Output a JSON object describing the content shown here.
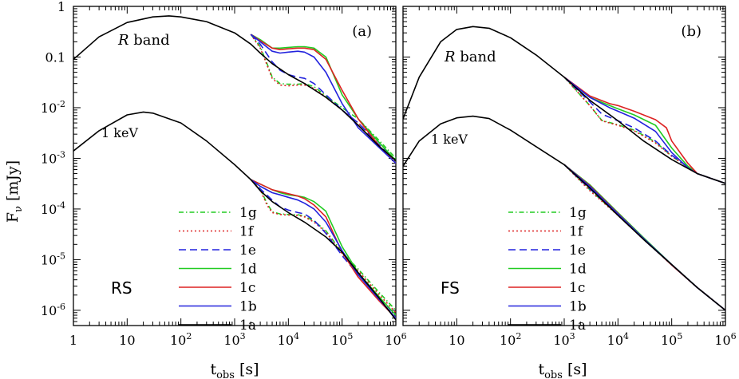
{
  "figure": {
    "ylabel_main": "F",
    "ylabel_sub": "ν",
    "ylabel_unit": "[mJy]",
    "xlabel_main": "t",
    "xlabel_sub": "obs",
    "xlabel_unit": "[s]",
    "x_ticks": [
      {
        "value": 1,
        "base": "1",
        "exp": ""
      },
      {
        "value": 10,
        "base": "10",
        "exp": ""
      },
      {
        "value": 100,
        "base": "10",
        "exp": "2"
      },
      {
        "value": 1000,
        "base": "10",
        "exp": "3"
      },
      {
        "value": 10000,
        "base": "10",
        "exp": "4"
      },
      {
        "value": 100000,
        "base": "10",
        "exp": "5"
      },
      {
        "value": 1000000,
        "base": "10",
        "exp": "6"
      }
    ],
    "y_ticks": [
      {
        "value": 1,
        "base": "1",
        "exp": ""
      },
      {
        "value": 0.1,
        "base": "0.1",
        "exp": ""
      },
      {
        "value": 0.01,
        "base": "10",
        "exp": "-2"
      },
      {
        "value": 0.001,
        "base": "10",
        "exp": "-3"
      },
      {
        "value": 0.0001,
        "base": "10",
        "exp": "-4"
      },
      {
        "value": 1e-05,
        "base": "10",
        "exp": "-5"
      },
      {
        "value": 1e-06,
        "base": "10",
        "exp": "-6"
      }
    ],
    "legend": [
      {
        "name": "1g",
        "color": "#22cc22",
        "dash": "dashdot"
      },
      {
        "name": "1f",
        "color": "#dd2222",
        "dash": "dotted"
      },
      {
        "name": "1e",
        "color": "#2222dd",
        "dash": "dashed"
      },
      {
        "name": "1d",
        "color": "#22cc22",
        "dash": "solid"
      },
      {
        "name": "1c",
        "color": "#dd2222",
        "dash": "solid"
      },
      {
        "name": "1b",
        "color": "#2222dd",
        "dash": "solid"
      },
      {
        "name": "1a",
        "color": "#000000",
        "dash": "solid"
      }
    ]
  },
  "chart_data": [
    {
      "type": "line",
      "panel_label": "(a)",
      "corner_label": "RS",
      "band_label_italic": "R",
      "band_label": "band",
      "xray_label": "1 keV",
      "xscale": "log",
      "yscale": "log",
      "xlim": [
        1,
        1000000
      ],
      "ylim": [
        5e-07,
        1
      ],
      "series": [
        {
          "name": "1a",
          "band": "R",
          "x": [
            1,
            3,
            10,
            30,
            60,
            100,
            300,
            1000,
            2000,
            3000,
            5000,
            10000,
            20000,
            50000,
            100000,
            200000,
            500000,
            1000000
          ],
          "y": [
            0.09,
            0.25,
            0.48,
            0.62,
            0.65,
            0.62,
            0.5,
            0.3,
            0.18,
            0.12,
            0.074,
            0.045,
            0.03,
            0.016,
            0.009,
            0.0045,
            0.0017,
            0.0009
          ]
        },
        {
          "name": "1b",
          "band": "R",
          "x": [
            2000,
            3000,
            5000,
            7000,
            10000,
            15000,
            20000,
            30000,
            50000,
            100000,
            200000,
            500000,
            1000000
          ],
          "y": [
            0.28,
            0.2,
            0.13,
            0.12,
            0.125,
            0.13,
            0.125,
            0.1,
            0.05,
            0.012,
            0.004,
            0.0016,
            0.0008
          ]
        },
        {
          "name": "1c",
          "band": "R",
          "x": [
            2000,
            3000,
            5000,
            7000,
            10000,
            15000,
            20000,
            30000,
            50000,
            100000,
            200000,
            500000,
            1000000
          ],
          "y": [
            0.28,
            0.21,
            0.15,
            0.14,
            0.145,
            0.15,
            0.15,
            0.14,
            0.09,
            0.022,
            0.006,
            0.0017,
            0.0008
          ]
        },
        {
          "name": "1d",
          "band": "R",
          "x": [
            2000,
            3000,
            5000,
            7000,
            10000,
            15000,
            20000,
            30000,
            50000,
            100000,
            200000,
            500000,
            1000000
          ],
          "y": [
            0.28,
            0.22,
            0.15,
            0.15,
            0.155,
            0.16,
            0.16,
            0.15,
            0.1,
            0.018,
            0.006,
            0.002,
            0.0009
          ]
        },
        {
          "name": "1e",
          "band": "R",
          "x": [
            2000,
            3000,
            5000,
            7000,
            10000,
            15000,
            20000,
            30000,
            50000,
            100000,
            200000,
            500000,
            1000000
          ],
          "y": [
            0.28,
            0.18,
            0.08,
            0.055,
            0.045,
            0.04,
            0.038,
            0.03,
            0.018,
            0.009,
            0.005,
            0.0018,
            0.0009
          ]
        },
        {
          "name": "1f",
          "band": "R",
          "x": [
            2000,
            3000,
            4000,
            5000,
            7000,
            10000,
            15000,
            20000,
            30000,
            50000,
            100000,
            200000,
            500000,
            1000000
          ],
          "y": [
            0.28,
            0.15,
            0.07,
            0.038,
            0.028,
            0.027,
            0.028,
            0.028,
            0.024,
            0.016,
            0.009,
            0.005,
            0.002,
            0.0009
          ]
        },
        {
          "name": "1g",
          "band": "R",
          "x": [
            2000,
            3000,
            4000,
            5000,
            7000,
            10000,
            15000,
            20000,
            30000,
            50000,
            100000,
            200000,
            500000,
            1000000
          ],
          "y": [
            0.28,
            0.16,
            0.075,
            0.04,
            0.03,
            0.029,
            0.029,
            0.03,
            0.026,
            0.017,
            0.01,
            0.006,
            0.0022,
            0.001
          ]
        },
        {
          "name": "1a",
          "band": "X",
          "x": [
            1,
            3,
            10,
            20,
            30,
            100,
            300,
            1000,
            2000,
            3000,
            5000,
            10000,
            20000,
            50000,
            100000,
            200000,
            500000,
            1000000
          ],
          "y": [
            0.0014,
            0.0035,
            0.0072,
            0.0082,
            0.0078,
            0.005,
            0.0022,
            0.00075,
            0.00038,
            0.00023,
            0.00014,
            8.5e-05,
            5.5e-05,
            2.8e-05,
            1.4e-05,
            5.5e-06,
            1.7e-06,
            6.5e-07
          ]
        },
        {
          "name": "1b",
          "band": "X",
          "x": [
            2000,
            3000,
            5000,
            7000,
            10000,
            15000,
            20000,
            30000,
            50000,
            100000,
            200000,
            500000,
            1000000
          ],
          "y": [
            0.00038,
            0.00028,
            0.00021,
            0.00019,
            0.00017,
            0.00015,
            0.00013,
            0.0001,
            5.5e-05,
            1.5e-05,
            5e-06,
            1.6e-06,
            7e-07
          ]
        },
        {
          "name": "1c",
          "band": "X",
          "x": [
            2000,
            3000,
            5000,
            7000,
            10000,
            15000,
            20000,
            30000,
            50000,
            100000,
            200000,
            500000,
            1000000
          ],
          "y": [
            0.00038,
            0.00031,
            0.00024,
            0.00022,
            0.0002,
            0.00018,
            0.00016,
            0.00012,
            7e-05,
            1.4e-05,
            4.5e-06,
            1.5e-06,
            7e-07
          ]
        },
        {
          "name": "1d",
          "band": "X",
          "x": [
            2000,
            3000,
            5000,
            7000,
            10000,
            15000,
            20000,
            30000,
            50000,
            100000,
            200000,
            500000,
            1000000
          ],
          "y": [
            0.00038,
            0.00031,
            0.00024,
            0.00021,
            0.00019,
            0.00018,
            0.00017,
            0.00014,
            9e-05,
            1.8e-05,
            5.5e-06,
            1.8e-06,
            8e-07
          ]
        },
        {
          "name": "1e",
          "band": "X",
          "x": [
            2000,
            3000,
            5000,
            7000,
            10000,
            15000,
            20000,
            30000,
            50000,
            100000,
            200000,
            500000,
            1000000
          ],
          "y": [
            0.00038,
            0.00025,
            0.00015,
            0.00011,
            9.5e-05,
            8.5e-05,
            8e-05,
            6e-05,
            3.3e-05,
            1.2e-05,
            5e-06,
            1.7e-06,
            8e-07
          ]
        },
        {
          "name": "1f",
          "band": "X",
          "x": [
            2000,
            3000,
            4000,
            5000,
            7000,
            10000,
            15000,
            20000,
            30000,
            50000,
            100000,
            200000,
            500000,
            1000000
          ],
          "y": [
            0.00038,
            0.00024,
            0.00012,
            8.5e-05,
            7.8e-05,
            7.6e-05,
            7.5e-05,
            7e-05,
            5.5e-05,
            3.5e-05,
            1.3e-05,
            6e-06,
            2e-06,
            9e-07
          ]
        },
        {
          "name": "1g",
          "band": "X",
          "x": [
            2000,
            3000,
            4000,
            5000,
            7000,
            10000,
            15000,
            20000,
            30000,
            50000,
            100000,
            200000,
            500000,
            1000000
          ],
          "y": [
            0.00038,
            0.00025,
            0.00013,
            8.8e-05,
            8e-05,
            7.8e-05,
            7.7e-05,
            7.2e-05,
            5.8e-05,
            3.7e-05,
            1.4e-05,
            6.5e-06,
            2.2e-06,
            1e-06
          ]
        }
      ]
    },
    {
      "type": "line",
      "panel_label": "(b)",
      "corner_label": "FS",
      "band_label_italic": "R",
      "band_label": "band",
      "xray_label": "1 keV",
      "xscale": "log",
      "yscale": "log",
      "xlim": [
        1,
        1000000
      ],
      "ylim": [
        5e-07,
        1
      ],
      "series": [
        {
          "name": "1a",
          "band": "R",
          "x": [
            1,
            2,
            5,
            10,
            20,
            40,
            100,
            300,
            1000,
            3000,
            10000,
            30000,
            100000,
            300000,
            1000000
          ],
          "y": [
            0.006,
            0.04,
            0.2,
            0.35,
            0.4,
            0.37,
            0.24,
            0.11,
            0.04,
            0.014,
            0.0055,
            0.0022,
            0.00095,
            0.0005,
            0.00032
          ]
        },
        {
          "name": "1b",
          "band": "R",
          "x": [
            1000,
            3000,
            7000,
            10000,
            20000,
            50000,
            100000,
            200000,
            300000,
            1000000
          ],
          "y": [
            0.04,
            0.016,
            0.01,
            0.0085,
            0.0062,
            0.0034,
            0.0013,
            0.00065,
            0.0005,
            0.00032
          ]
        },
        {
          "name": "1c",
          "band": "R",
          "x": [
            1000,
            3000,
            7000,
            10000,
            20000,
            50000,
            80000,
            100000,
            200000,
            300000,
            1000000
          ],
          "y": [
            0.04,
            0.017,
            0.012,
            0.011,
            0.0085,
            0.0058,
            0.004,
            0.0022,
            0.0008,
            0.0005,
            0.00032
          ]
        },
        {
          "name": "1d",
          "band": "R",
          "x": [
            1000,
            3000,
            7000,
            10000,
            20000,
            50000,
            100000,
            200000,
            300000,
            1000000
          ],
          "y": [
            0.04,
            0.016,
            0.011,
            0.0095,
            0.0072,
            0.0045,
            0.0016,
            0.0007,
            0.0005,
            0.00032
          ]
        },
        {
          "name": "1e",
          "band": "R",
          "x": [
            1000,
            3000,
            5000,
            10000,
            20000,
            50000,
            100000,
            300000,
            1000000
          ],
          "y": [
            0.04,
            0.013,
            0.0075,
            0.0055,
            0.004,
            0.0022,
            0.00115,
            0.0005,
            0.00032
          ]
        },
        {
          "name": "1f",
          "band": "R",
          "x": [
            1000,
            3000,
            5000,
            10000,
            20000,
            50000,
            100000,
            300000,
            1000000
          ],
          "y": [
            0.04,
            0.011,
            0.0055,
            0.0045,
            0.0035,
            0.002,
            0.0011,
            0.0005,
            0.00032
          ]
        },
        {
          "name": "1g",
          "band": "R",
          "x": [
            1000,
            3000,
            5000,
            10000,
            20000,
            50000,
            100000,
            300000,
            1000000
          ],
          "y": [
            0.04,
            0.011,
            0.0056,
            0.0046,
            0.0036,
            0.0021,
            0.0011,
            0.0005,
            0.00032
          ]
        },
        {
          "name": "1a",
          "band": "X",
          "x": [
            1,
            2,
            5,
            10,
            20,
            40,
            100,
            300,
            1000,
            3000,
            10000,
            30000,
            100000,
            300000,
            1000000
          ],
          "y": [
            0.0007,
            0.0022,
            0.0048,
            0.0063,
            0.0068,
            0.0061,
            0.0036,
            0.0017,
            0.00075,
            0.00026,
            7.5e-05,
            2.5e-05,
            8e-06,
            2.8e-06,
            1e-06
          ]
        },
        {
          "name": "1b",
          "band": "X",
          "x": [
            1000,
            3000,
            10000,
            30000,
            100000,
            300000,
            1000000
          ],
          "y": [
            0.00075,
            0.00028,
            8e-05,
            2.6e-05,
            8e-06,
            2.8e-06,
            1e-06
          ]
        },
        {
          "name": "1c",
          "band": "X",
          "x": [
            1000,
            3000,
            10000,
            30000,
            100000,
            300000,
            1000000
          ],
          "y": [
            0.00075,
            0.00029,
            8.2e-05,
            2.6e-05,
            7.8e-06,
            2.8e-06,
            1e-06
          ]
        },
        {
          "name": "1d",
          "band": "X",
          "x": [
            1000,
            3000,
            10000,
            30000,
            100000,
            300000,
            1000000
          ],
          "y": [
            0.00075,
            0.0003,
            8.5e-05,
            2.7e-05,
            8e-06,
            2.8e-06,
            1e-06
          ]
        },
        {
          "name": "1e",
          "band": "X",
          "x": [
            1000,
            3000,
            10000,
            30000,
            100000,
            300000,
            1000000
          ],
          "y": [
            0.00075,
            0.00025,
            7.8e-05,
            2.5e-05,
            7.9e-06,
            2.8e-06,
            1e-06
          ]
        },
        {
          "name": "1f",
          "band": "X",
          "x": [
            1000,
            3000,
            10000,
            30000,
            100000,
            300000,
            1000000
          ],
          "y": [
            0.00075,
            0.00023,
            7.5e-05,
            2.5e-05,
            7.9e-06,
            2.8e-06,
            1e-06
          ]
        },
        {
          "name": "1g",
          "band": "X",
          "x": [
            1000,
            3000,
            10000,
            30000,
            100000,
            300000,
            1000000
          ],
          "y": [
            0.00075,
            0.00024,
            7.6e-05,
            2.5e-05,
            7.9e-06,
            2.8e-06,
            1e-06
          ]
        }
      ]
    }
  ]
}
